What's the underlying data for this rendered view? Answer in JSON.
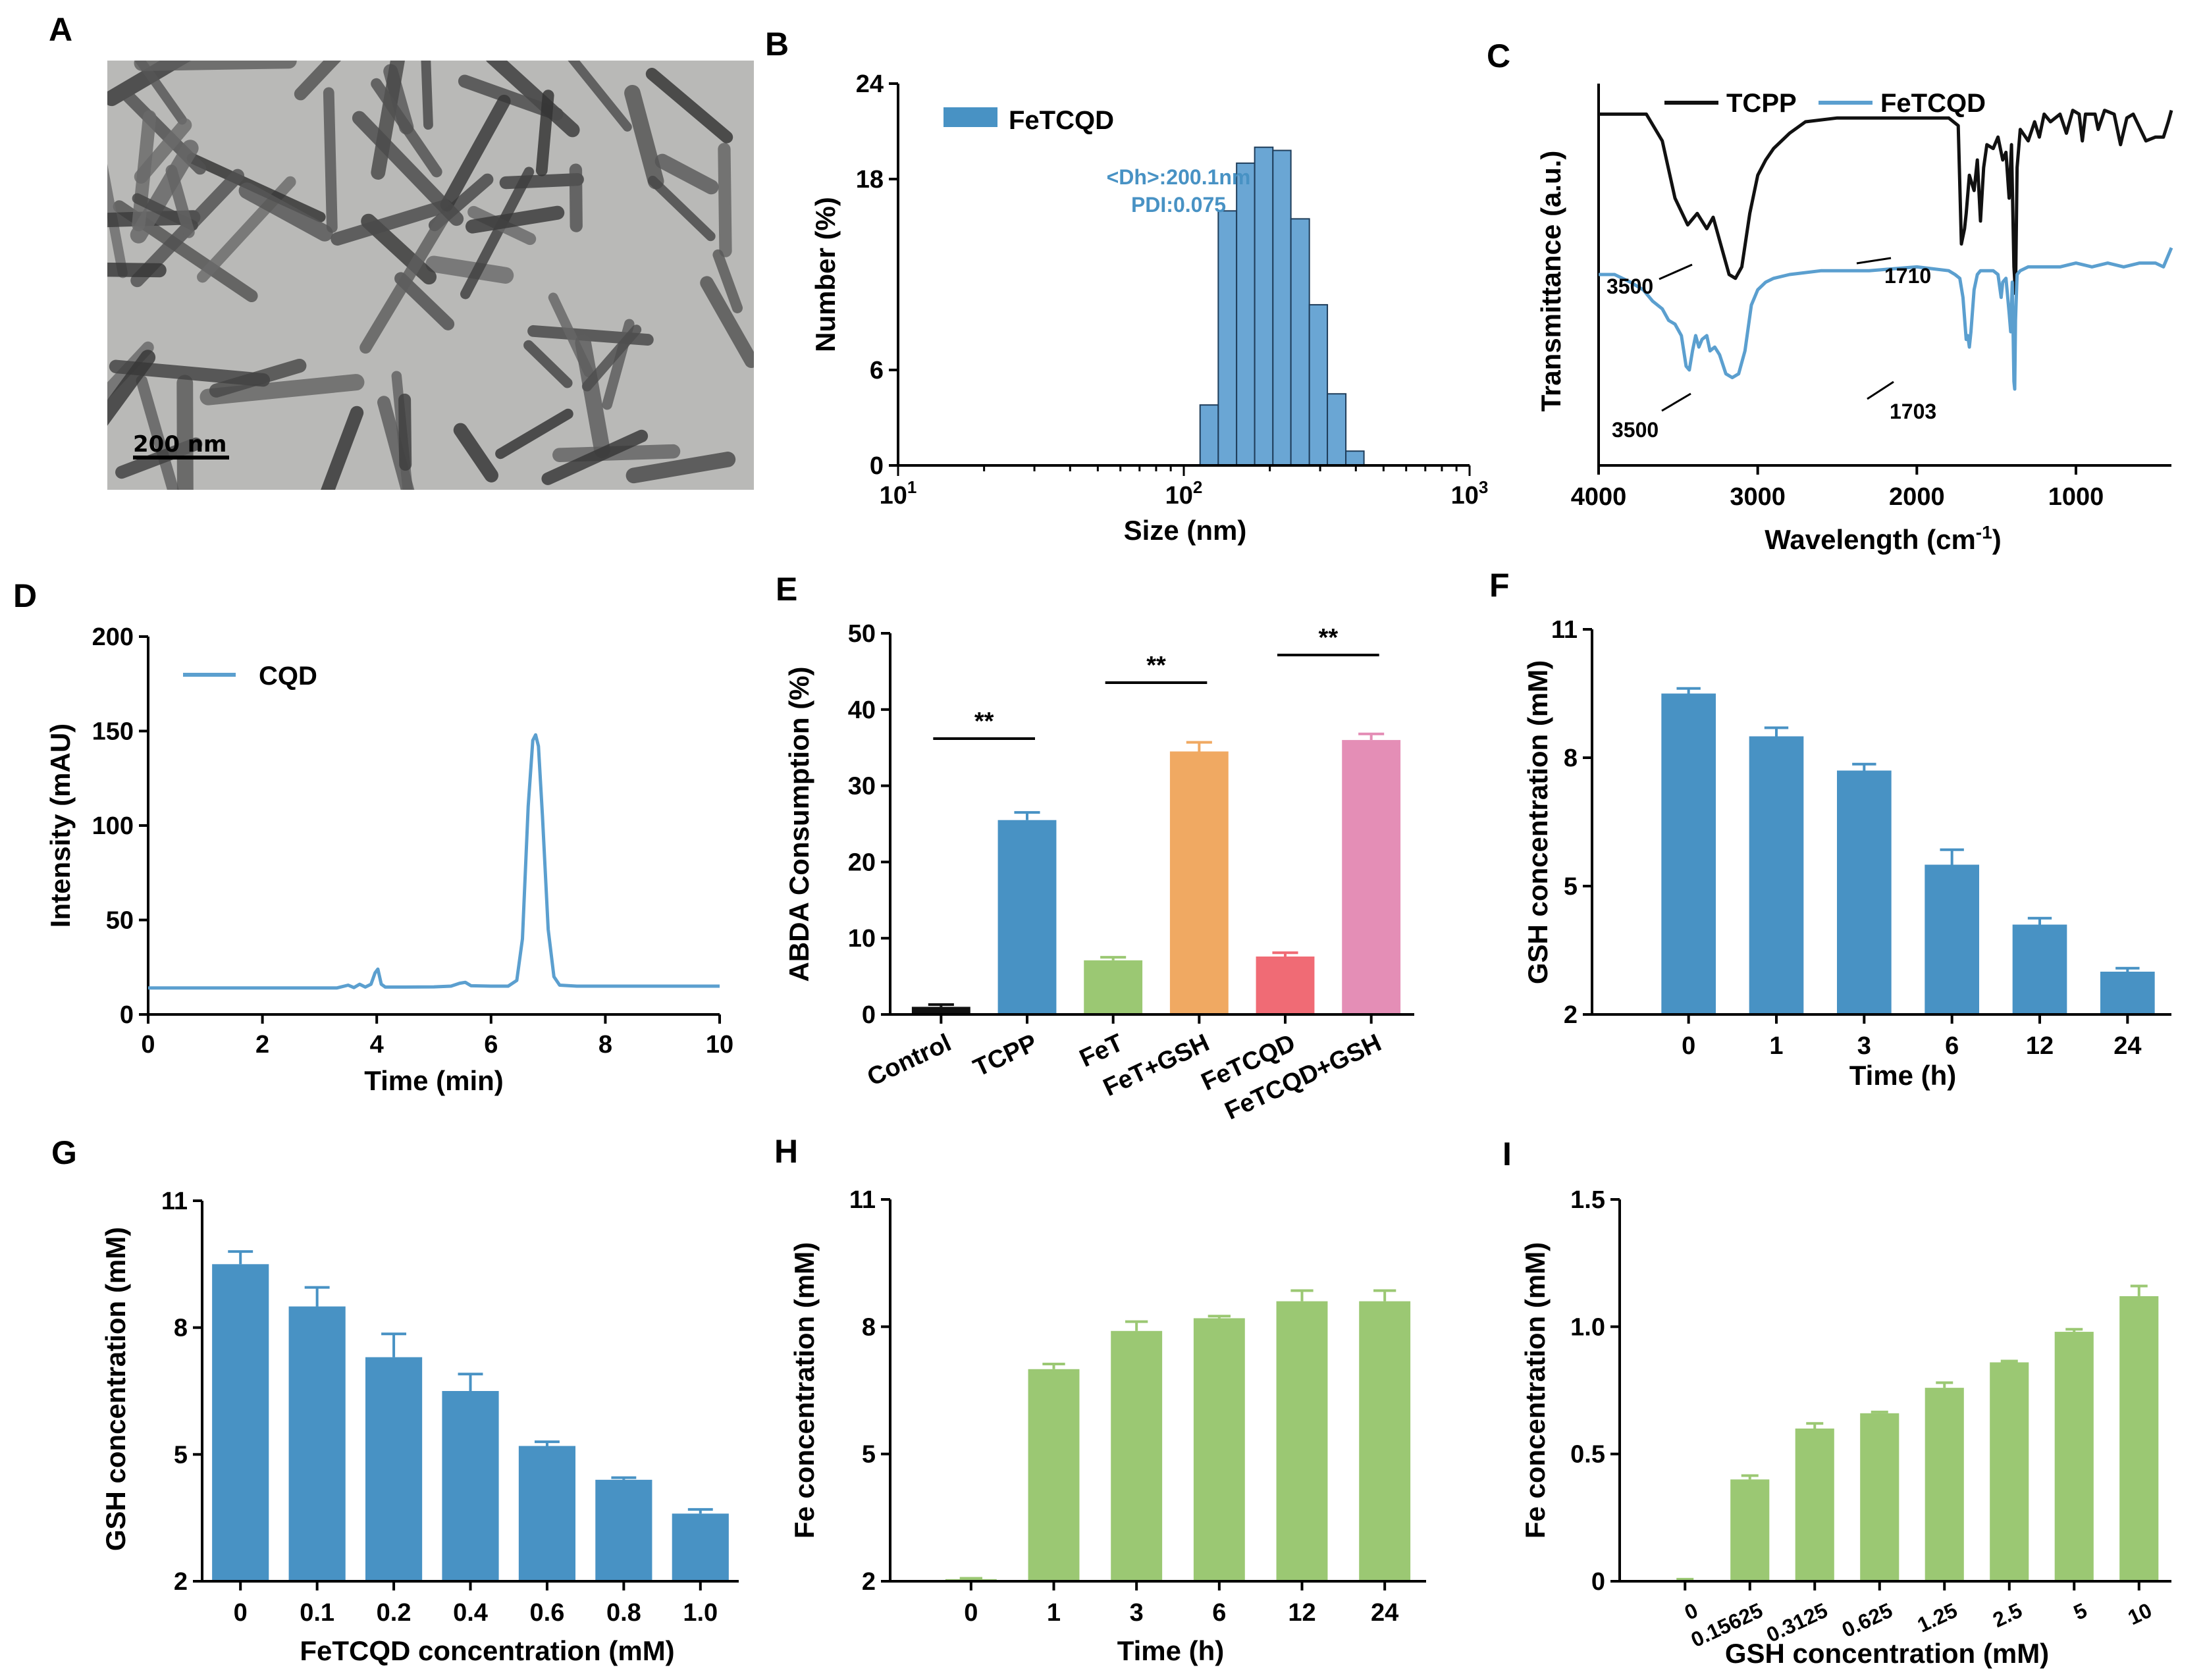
{
  "colors": {
    "blue": "#4892c4",
    "lightblue": "#5b9fcf",
    "green": "#9bc873",
    "orange": "#f0a962",
    "red": "#f06b75",
    "pink": "#e48eb6",
    "black": "#111111"
  },
  "panel_letters": [
    "A",
    "B",
    "C",
    "D",
    "E",
    "F",
    "G",
    "H",
    "I"
  ],
  "chart_data": [
    {
      "panel": "A",
      "type": "image",
      "scale_bar_label": "200 nm"
    },
    {
      "panel": "B",
      "type": "bar",
      "title": "",
      "xlabel": "Size (nm)",
      "ylabel": "Number (%)",
      "xscale": "log",
      "xlim": [
        10,
        1000
      ],
      "ylim": [
        0,
        24
      ],
      "yticks": [
        0,
        6,
        18,
        24
      ],
      "xtick_labels": [
        {
          "base": "10",
          "exp": "1"
        },
        {
          "base": "10",
          "exp": "2"
        },
        {
          "base": "10",
          "exp": "3"
        }
      ],
      "legend": [
        "FeTCQD"
      ],
      "annotations": [
        "<Dh>:200.1nm",
        "PDI:0.075"
      ],
      "bins": [
        {
          "from": 114,
          "to": 132,
          "value": 3.8
        },
        {
          "from": 132,
          "to": 153,
          "value": 16.0
        },
        {
          "from": 153,
          "to": 177,
          "value": 19.0
        },
        {
          "from": 177,
          "to": 205,
          "value": 20.0
        },
        {
          "from": 205,
          "to": 237,
          "value": 19.8
        },
        {
          "from": 237,
          "to": 275,
          "value": 15.5
        },
        {
          "from": 275,
          "to": 318,
          "value": 10.1
        },
        {
          "from": 318,
          "to": 369,
          "value": 4.5
        },
        {
          "from": 369,
          "to": 427,
          "value": 0.9
        }
      ]
    },
    {
      "panel": "C",
      "type": "line",
      "xlabel": "Wavelength (cm",
      "xlabel_sup": "-1",
      "xlabel_end": ")",
      "ylabel": "Transmittance (a.u.)",
      "xlim": [
        4000,
        400
      ],
      "xticks": [
        4000,
        3000,
        2000,
        1000
      ],
      "series": [
        {
          "name": "TCPP",
          "color": "#111111",
          "points": [
            [
              4000,
              92
            ],
            [
              3700,
              92
            ],
            [
              3600,
              85
            ],
            [
              3520,
              70
            ],
            [
              3440,
              63
            ],
            [
              3380,
              66
            ],
            [
              3320,
              62
            ],
            [
              3280,
              65
            ],
            [
              3220,
              56
            ],
            [
              3180,
              50
            ],
            [
              3140,
              49
            ],
            [
              3100,
              52
            ],
            [
              3050,
              66
            ],
            [
              3000,
              76
            ],
            [
              2950,
              80
            ],
            [
              2900,
              83
            ],
            [
              2800,
              87
            ],
            [
              2700,
              90
            ],
            [
              2500,
              91
            ],
            [
              2200,
              91
            ],
            [
              1900,
              91
            ],
            [
              1800,
              91
            ],
            [
              1740,
              89
            ],
            [
              1720,
              58
            ],
            [
              1700,
              62
            ],
            [
              1690,
              66
            ],
            [
              1670,
              76
            ],
            [
              1640,
              72
            ],
            [
              1620,
              80
            ],
            [
              1600,
              64
            ],
            [
              1580,
              78
            ],
            [
              1560,
              84
            ],
            [
              1520,
              83
            ],
            [
              1490,
              86
            ],
            [
              1460,
              80
            ],
            [
              1440,
              82
            ],
            [
              1420,
              70
            ],
            [
              1405,
              84
            ],
            [
              1390,
              52
            ],
            [
              1380,
              45
            ],
            [
              1370,
              78
            ],
            [
              1350,
              88
            ],
            [
              1300,
              85
            ],
            [
              1260,
              90
            ],
            [
              1230,
              86
            ],
            [
              1200,
              92
            ],
            [
              1160,
              90
            ],
            [
              1100,
              92
            ],
            [
              1060,
              87
            ],
            [
              1020,
              93
            ],
            [
              980,
              92
            ],
            [
              960,
              85
            ],
            [
              940,
              92
            ],
            [
              880,
              92
            ],
            [
              860,
              88
            ],
            [
              820,
              93
            ],
            [
              760,
              92
            ],
            [
              720,
              84
            ],
            [
              680,
              91
            ],
            [
              640,
              92
            ],
            [
              560,
              85
            ],
            [
              500,
              86
            ],
            [
              450,
              86
            ],
            [
              420,
              90
            ],
            [
              400,
              93
            ]
          ]
        },
        {
          "name": "FeTCQD",
          "color": "#5b9fcf",
          "points": [
            [
              4000,
              50
            ],
            [
              3900,
              50
            ],
            [
              3800,
              48
            ],
            [
              3720,
              46
            ],
            [
              3660,
              43
            ],
            [
              3600,
              41
            ],
            [
              3560,
              38
            ],
            [
              3520,
              37
            ],
            [
              3480,
              34
            ],
            [
              3450,
              26
            ],
            [
              3430,
              25
            ],
            [
              3410,
              30
            ],
            [
              3390,
              34
            ],
            [
              3370,
              31
            ],
            [
              3350,
              33
            ],
            [
              3320,
              34
            ],
            [
              3300,
              30
            ],
            [
              3270,
              31
            ],
            [
              3240,
              29
            ],
            [
              3200,
              24
            ],
            [
              3160,
              23
            ],
            [
              3120,
              24
            ],
            [
              3080,
              30
            ],
            [
              3040,
              42
            ],
            [
              3000,
              46
            ],
            [
              2950,
              48
            ],
            [
              2900,
              49
            ],
            [
              2800,
              50
            ],
            [
              2600,
              51
            ],
            [
              2300,
              51
            ],
            [
              2000,
              52
            ],
            [
              1800,
              51
            ],
            [
              1760,
              50
            ],
            [
              1730,
              49
            ],
            [
              1710,
              44
            ],
            [
              1690,
              33
            ],
            [
              1680,
              34
            ],
            [
              1670,
              31
            ],
            [
              1660,
              35
            ],
            [
              1640,
              46
            ],
            [
              1620,
              50
            ],
            [
              1600,
              51
            ],
            [
              1560,
              51
            ],
            [
              1520,
              51
            ],
            [
              1490,
              50
            ],
            [
              1470,
              44
            ],
            [
              1460,
              48
            ],
            [
              1440,
              49
            ],
            [
              1420,
              40
            ],
            [
              1410,
              35
            ],
            [
              1400,
              48
            ],
            [
              1390,
              22
            ],
            [
              1385,
              20
            ],
            [
              1380,
              38
            ],
            [
              1370,
              50
            ],
            [
              1350,
              51
            ],
            [
              1300,
              52
            ],
            [
              1200,
              52
            ],
            [
              1100,
              52
            ],
            [
              1000,
              53
            ],
            [
              900,
              52
            ],
            [
              800,
              53
            ],
            [
              700,
              52
            ],
            [
              600,
              53
            ],
            [
              500,
              53
            ],
            [
              450,
              52
            ],
            [
              400,
              57
            ]
          ]
        }
      ],
      "annotations": [
        "3500",
        "1710",
        "3500",
        "1703"
      ]
    },
    {
      "panel": "D",
      "type": "line",
      "xlabel": "Time (min)",
      "ylabel": "Intensity (mAU)",
      "xlim": [
        0,
        10
      ],
      "ylim": [
        0,
        200
      ],
      "xticks": [
        0,
        2,
        4,
        6,
        8,
        10
      ],
      "yticks": [
        0,
        50,
        100,
        150,
        200
      ],
      "series": [
        {
          "name": "CQD",
          "color": "#5b9fcf",
          "points": [
            [
              0,
              14
            ],
            [
              0.5,
              14
            ],
            [
              1,
              14
            ],
            [
              1.5,
              14
            ],
            [
              2,
              14
            ],
            [
              2.5,
              14
            ],
            [
              3,
              14
            ],
            [
              3.3,
              14
            ],
            [
              3.5,
              15.5
            ],
            [
              3.6,
              14.2
            ],
            [
              3.7,
              16
            ],
            [
              3.8,
              14.5
            ],
            [
              3.9,
              16
            ],
            [
              3.97,
              22
            ],
            [
              4.02,
              24
            ],
            [
              4.08,
              16
            ],
            [
              4.15,
              14.5
            ],
            [
              4.5,
              14.5
            ],
            [
              5,
              14.6
            ],
            [
              5.3,
              15
            ],
            [
              5.45,
              16.5
            ],
            [
              5.55,
              17
            ],
            [
              5.65,
              15.2
            ],
            [
              6,
              15
            ],
            [
              6.3,
              15
            ],
            [
              6.45,
              18
            ],
            [
              6.55,
              40
            ],
            [
              6.65,
              110
            ],
            [
              6.73,
              145
            ],
            [
              6.78,
              148
            ],
            [
              6.83,
              142
            ],
            [
              6.9,
              105
            ],
            [
              7,
              45
            ],
            [
              7.1,
              20
            ],
            [
              7.2,
              15.5
            ],
            [
              7.5,
              15
            ],
            [
              8,
              15
            ],
            [
              9,
              15
            ],
            [
              10,
              15
            ]
          ]
        }
      ]
    },
    {
      "panel": "E",
      "type": "bar",
      "xlabel": "",
      "ylabel": "ABDA Consumption (%)",
      "ylim": [
        0,
        50
      ],
      "yticks": [
        0,
        10,
        20,
        30,
        40,
        50
      ],
      "categories": [
        "Control",
        "TCPP",
        "FeT",
        "FeT+GSH",
        "FeTCQD",
        "FeTCQD+GSH"
      ],
      "values": [
        1.0,
        25.5,
        7.1,
        34.5,
        7.6,
        36.0
      ],
      "errors": [
        0.3,
        1.0,
        0.4,
        1.2,
        0.5,
        0.8
      ],
      "bar_colors": [
        "#111111",
        "#4892c4",
        "#9bc873",
        "#f0a962",
        "#f06b75",
        "#e48eb6"
      ],
      "significance": [
        {
          "from": 0,
          "to": 1,
          "label": "**"
        },
        {
          "from": 2,
          "to": 3,
          "label": "**"
        },
        {
          "from": 4,
          "to": 5,
          "label": "**"
        }
      ]
    },
    {
      "panel": "F",
      "type": "bar",
      "xlabel": "Time (h)",
      "ylabel": "GSH concentration (mM)",
      "ylim": [
        2,
        11
      ],
      "yticks": [
        2,
        5,
        8,
        11
      ],
      "ytick_labels": [
        "2",
        "5",
        "8",
        "11"
      ],
      "categories": [
        "0",
        "1",
        "3",
        "6",
        "12",
        "24"
      ],
      "values": [
        9.5,
        8.5,
        7.7,
        5.5,
        4.1,
        3.0
      ],
      "errors": [
        0.12,
        0.2,
        0.15,
        0.35,
        0.15,
        0.08
      ],
      "bar_color": "#4892c4"
    },
    {
      "panel": "G",
      "type": "bar",
      "xlabel": "FeTCQD concentration (mM)",
      "ylabel": "GSH concentration (mM)",
      "ylim": [
        2,
        11
      ],
      "yticks": [
        2,
        5,
        8,
        11
      ],
      "ytick_labels": [
        "2",
        "5",
        "8",
        "11"
      ],
      "categories": [
        "0",
        "0.1",
        "0.2",
        "0.4",
        "0.6",
        "0.8",
        "1.0"
      ],
      "values": [
        9.5,
        8.5,
        7.3,
        6.5,
        5.2,
        4.4,
        3.6
      ],
      "errors": [
        0.3,
        0.45,
        0.55,
        0.4,
        0.1,
        0.05,
        0.1
      ],
      "bar_color": "#4892c4"
    },
    {
      "panel": "H",
      "type": "bar",
      "xlabel": "Time (h)",
      "ylabel": "Fe concentration (mM)",
      "ylim": [
        2,
        11
      ],
      "yticks": [
        2,
        5,
        8,
        11
      ],
      "ytick_labels": [
        "2",
        "5",
        "8",
        "11"
      ],
      "categories": [
        "0",
        "1",
        "3",
        "6",
        "12",
        "24"
      ],
      "values": [
        2.05,
        7.0,
        7.9,
        8.2,
        8.6,
        8.6
      ],
      "errors": [
        0.02,
        0.12,
        0.22,
        0.05,
        0.25,
        0.25
      ],
      "bar_color": "#9bc873"
    },
    {
      "panel": "I",
      "type": "bar",
      "xlabel": "GSH concentration (mM)",
      "ylabel": "Fe concentration (mM)",
      "ylim": [
        0,
        1.5
      ],
      "yticks": [
        0,
        0.5,
        1.0,
        1.5
      ],
      "ytick_labels": [
        "0",
        "0.5",
        "1.0",
        "1.5"
      ],
      "categories": [
        "0",
        "0.15625",
        "0.3125",
        "0.625",
        "1.25",
        "2.5",
        "5",
        "10"
      ],
      "values": [
        0.005,
        0.4,
        0.6,
        0.66,
        0.76,
        0.86,
        0.98,
        1.12
      ],
      "errors": [
        0.003,
        0.015,
        0.02,
        0.005,
        0.02,
        0.005,
        0.01,
        0.04
      ],
      "bar_color": "#9bc873"
    }
  ]
}
